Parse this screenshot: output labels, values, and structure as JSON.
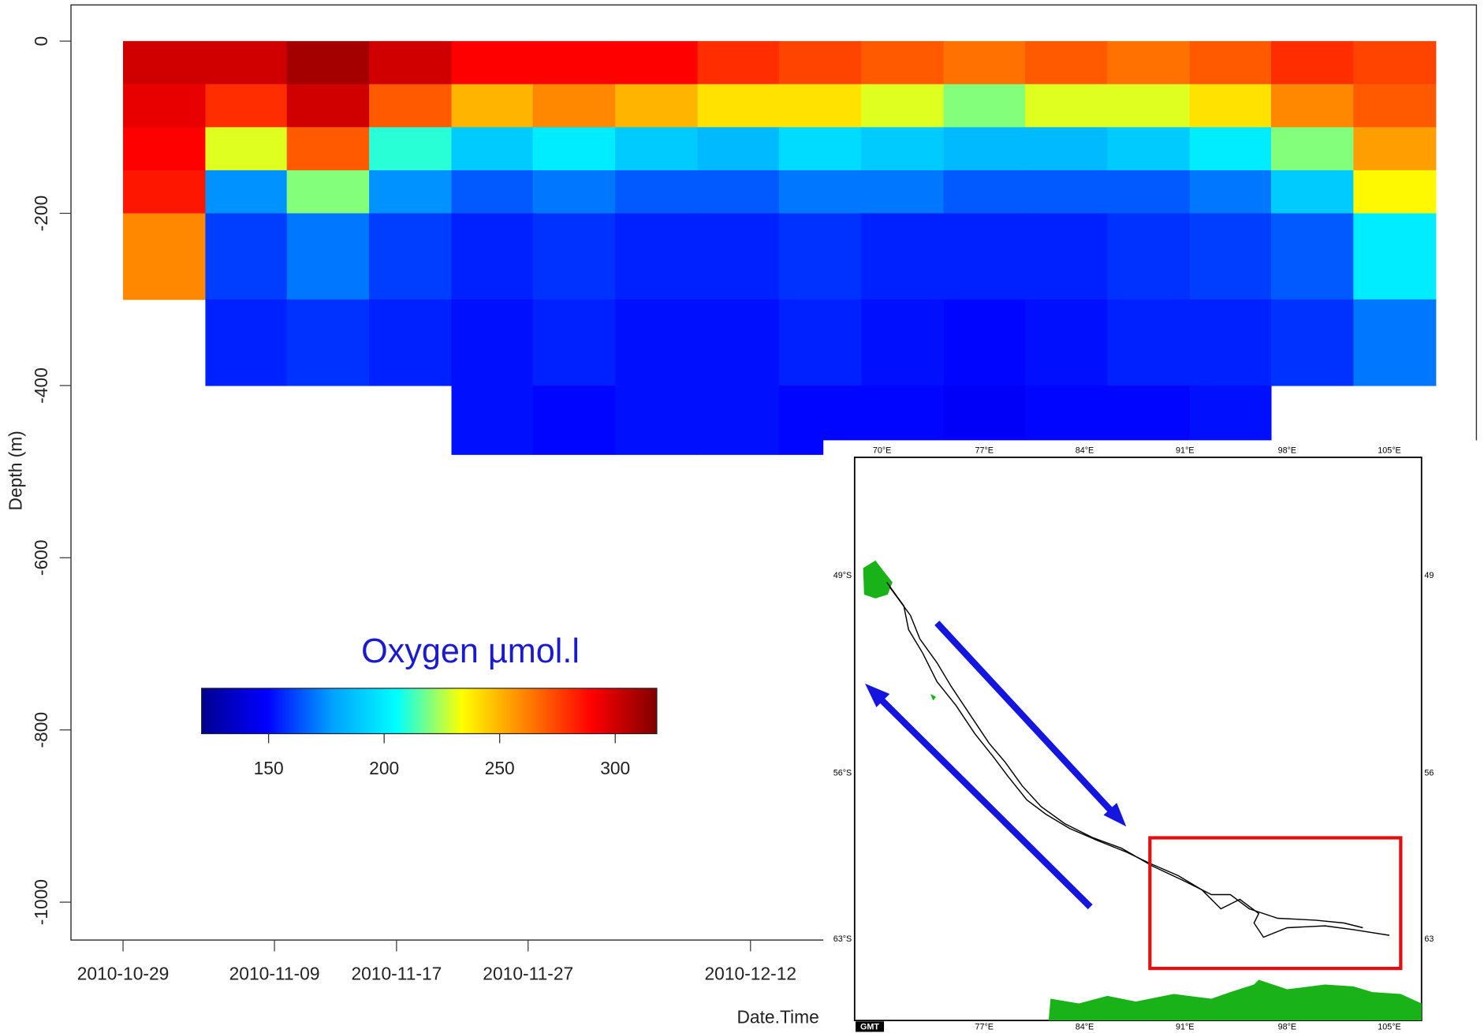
{
  "chart_data": {
    "type": "contour",
    "y_label": "Depth (m)",
    "x_label": "Date.Time",
    "ylim": [
      -1044,
      42
    ],
    "yticks": [
      0,
      -200,
      -400,
      -600,
      -800,
      -1000
    ],
    "xlim": [
      0,
      1485
    ],
    "xticks": [
      {
        "value": 55,
        "label": "2010-10-29"
      },
      {
        "value": 215,
        "label": "2010-11-09"
      },
      {
        "value": 344,
        "label": "2010-11-17"
      },
      {
        "value": 483,
        "label": "2010-11-27"
      },
      {
        "value": 718,
        "label": "2010-12-12"
      }
    ],
    "x_edges": [
      55,
      142,
      228,
      315,
      402,
      488,
      575,
      662,
      748,
      835,
      922,
      1008,
      1095,
      1182,
      1268,
      1355,
      1442
    ],
    "depth_edges": [
      0,
      -50,
      -100,
      -150,
      -200,
      -300,
      -400,
      -480
    ],
    "z": [
      [
        300,
        300,
        310,
        300,
        290,
        290,
        290,
        280,
        275,
        270,
        265,
        270,
        265,
        270,
        280,
        275
      ],
      [
        295,
        280,
        300,
        270,
        250,
        260,
        250,
        240,
        240,
        230,
        220,
        230,
        230,
        240,
        260,
        270
      ],
      [
        290,
        230,
        270,
        210,
        190,
        200,
        190,
        185,
        195,
        190,
        185,
        185,
        190,
        200,
        220,
        255
      ],
      [
        285,
        175,
        220,
        175,
        165,
        170,
        165,
        165,
        170,
        170,
        165,
        165,
        165,
        170,
        190,
        235
      ],
      [
        260,
        160,
        170,
        160,
        155,
        158,
        155,
        155,
        158,
        155,
        155,
        155,
        158,
        160,
        165,
        200
      ],
      [
        null,
        155,
        158,
        155,
        152,
        155,
        152,
        152,
        155,
        152,
        150,
        152,
        155,
        155,
        158,
        170
      ],
      [
        null,
        null,
        null,
        null,
        152,
        150,
        152,
        152,
        150,
        150,
        148,
        150,
        150,
        152,
        null,
        null
      ]
    ],
    "colorbar_title": "Oxygen µmol.l",
    "clim": [
      121,
      318
    ],
    "cticks": [
      150,
      200,
      250,
      300
    ],
    "colorscale": [
      "#00008f",
      "#0000ff",
      "#00a0ff",
      "#00ffff",
      "#ffff00",
      "#ff8000",
      "#ff0000",
      "#800000"
    ]
  },
  "inset_map": {
    "top_labels": [
      "70°E",
      "77°E",
      "84°E",
      "91°E",
      "98°E",
      "105°E"
    ],
    "bottom_labels": [
      "77°E",
      "84°E",
      "91°E",
      "98°E",
      "105°E"
    ],
    "left_labels": [
      "49°S",
      "56°S",
      "63°S"
    ],
    "right_labels": [
      "49",
      "56",
      "63"
    ],
    "logo": "GMT"
  }
}
